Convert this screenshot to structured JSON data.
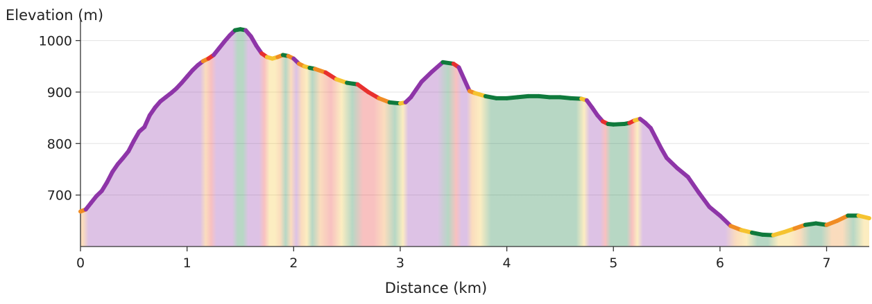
{
  "chart_data": {
    "type": "area",
    "xlabel": "Distance (km)",
    "ylabel": "Elevation (m)",
    "xlim": [
      0,
      7.4
    ],
    "ylim": [
      600,
      1025
    ],
    "x_ticks": [
      0,
      1,
      2,
      3,
      4,
      5,
      6,
      7
    ],
    "y_ticks": [
      700,
      800,
      900,
      1000
    ],
    "grid": true,
    "legend": "none",
    "grade_colors": {
      "flat": "#0f7a3c",
      "moderate": "#f5c330",
      "steep": "#f08c24",
      "very_steep": "#e8302e",
      "extreme": "#8e35a8"
    },
    "series": [
      {
        "x": [
          0,
          0.05,
          0.1,
          0.15,
          0.2,
          0.25,
          0.3,
          0.35,
          0.4,
          0.45,
          0.5,
          0.55,
          0.6,
          0.65,
          0.7,
          0.75,
          0.8,
          0.85,
          0.9,
          0.95,
          1.0,
          1.05,
          1.1,
          1.15,
          1.2,
          1.25,
          1.3,
          1.35,
          1.4,
          1.45,
          1.5,
          1.55,
          1.6,
          1.65,
          1.7,
          1.75,
          1.8,
          1.85,
          1.9,
          1.95,
          2.0,
          2.05,
          2.1,
          2.15,
          2.2,
          2.3,
          2.4,
          2.5,
          2.6,
          2.7,
          2.8,
          2.9,
          3.0,
          3.05,
          3.1,
          3.15,
          3.2,
          3.3,
          3.4,
          3.5,
          3.55,
          3.6,
          3.65,
          3.7,
          3.8,
          3.9,
          4.0,
          4.1,
          4.2,
          4.3,
          4.4,
          4.5,
          4.6,
          4.7,
          4.75,
          4.8,
          4.85,
          4.9,
          4.95,
          5.0,
          5.1,
          5.15,
          5.2,
          5.25,
          5.3,
          5.35,
          5.4,
          5.45,
          5.5,
          5.6,
          5.7,
          5.8,
          5.9,
          6.0,
          6.1,
          6.2,
          6.3,
          6.4,
          6.5,
          6.6,
          6.7,
          6.8,
          6.9,
          7.0,
          7.1,
          7.2,
          7.3,
          7.4
        ],
        "y": [
          668,
          672,
          685,
          698,
          708,
          725,
          745,
          760,
          772,
          785,
          805,
          823,
          832,
          855,
          870,
          882,
          890,
          898,
          907,
          918,
          930,
          942,
          952,
          960,
          965,
          972,
          985,
          998,
          1010,
          1020,
          1022,
          1020,
          1008,
          990,
          975,
          968,
          965,
          968,
          972,
          970,
          965,
          955,
          950,
          947,
          945,
          938,
          925,
          918,
          915,
          900,
          888,
          880,
          878,
          880,
          890,
          905,
          920,
          940,
          958,
          955,
          948,
          925,
          902,
          898,
          892,
          888,
          888,
          890,
          892,
          892,
          890,
          890,
          888,
          887,
          884,
          870,
          855,
          843,
          838,
          837,
          838,
          840,
          845,
          848,
          840,
          830,
          810,
          790,
          772,
          752,
          735,
          705,
          677,
          660,
          640,
          632,
          627,
          623,
          622,
          628,
          635,
          642,
          645,
          642,
          650,
          660,
          660,
          655
        ]
      }
    ]
  }
}
